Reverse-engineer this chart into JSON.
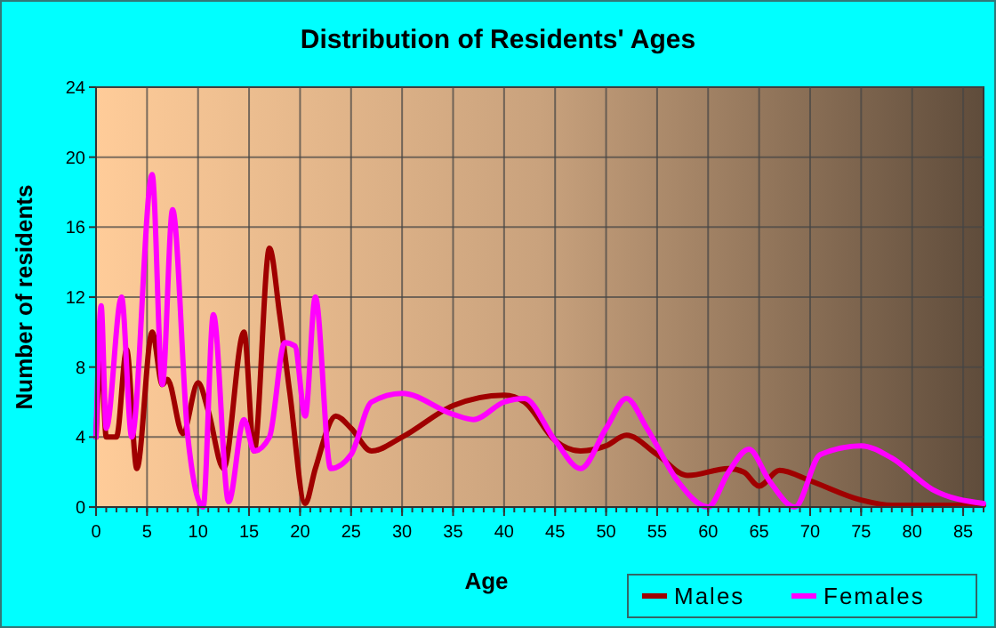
{
  "chart_data": {
    "type": "line",
    "title": "Distribution of Residents' Ages",
    "xlabel": "Age",
    "ylabel": "Number of residents",
    "xlim": [
      0,
      87
    ],
    "ylim": [
      0,
      24
    ],
    "xticks": [
      0,
      5,
      10,
      15,
      20,
      25,
      30,
      35,
      40,
      45,
      50,
      55,
      60,
      65,
      70,
      75,
      80,
      85
    ],
    "yticks": [
      0,
      4,
      8,
      12,
      16,
      20,
      24
    ],
    "grid": true,
    "legend": "bottom right",
    "marker": "none",
    "line_style": "solid",
    "series": [
      {
        "name": "Males",
        "color": "#a00000",
        "x": [
          0,
          0.5,
          1,
          2,
          3,
          4,
          5.5,
          6.5,
          7,
          8.5,
          10,
          11,
          12.5,
          14.5,
          15.5,
          17,
          18,
          19,
          20.5,
          21.5,
          23.5,
          25,
          27,
          30,
          35,
          40,
          42,
          45,
          47.5,
          50,
          52,
          55,
          58,
          62,
          63.5,
          65,
          67,
          70,
          75,
          78,
          87
        ],
        "values": [
          4,
          8.7,
          4,
          4,
          9,
          2.2,
          10,
          7,
          7.3,
          4.2,
          7.1,
          5.5,
          2.2,
          10,
          3.2,
          14.8,
          11,
          6.5,
          0.2,
          2.2,
          5.2,
          4.5,
          3.2,
          4,
          5.8,
          6.4,
          6,
          3.8,
          3.2,
          3.5,
          4.1,
          3,
          1.8,
          2.2,
          2,
          1.2,
          2.1,
          1.5,
          0.4,
          0.1,
          0.1
        ]
      },
      {
        "name": "Females",
        "color": "#ff00ff",
        "x": [
          0,
          0.5,
          1,
          2.5,
          3.5,
          5.5,
          6.5,
          7.5,
          9,
          10.5,
          11.5,
          13,
          14.5,
          15.5,
          17,
          18.5,
          19.5,
          20.5,
          21.5,
          23,
          25,
          27,
          30,
          35,
          37,
          40,
          42,
          45,
          47.5,
          50,
          52,
          54,
          57,
          60,
          62,
          64,
          66,
          68.5,
          71,
          75,
          78,
          82,
          87
        ],
        "values": [
          4,
          11.5,
          4.5,
          12,
          4,
          19,
          7,
          17,
          4,
          0,
          11,
          0.3,
          5,
          3.2,
          4,
          9.4,
          9.2,
          5.2,
          12,
          2.2,
          3,
          6,
          6.5,
          5.3,
          5,
          6,
          6.2,
          3.8,
          2.2,
          4.5,
          6.2,
          4.5,
          1.5,
          0,
          2,
          3.3,
          1.5,
          0,
          3,
          3.5,
          2.8,
          1,
          0.2
        ]
      }
    ]
  }
}
